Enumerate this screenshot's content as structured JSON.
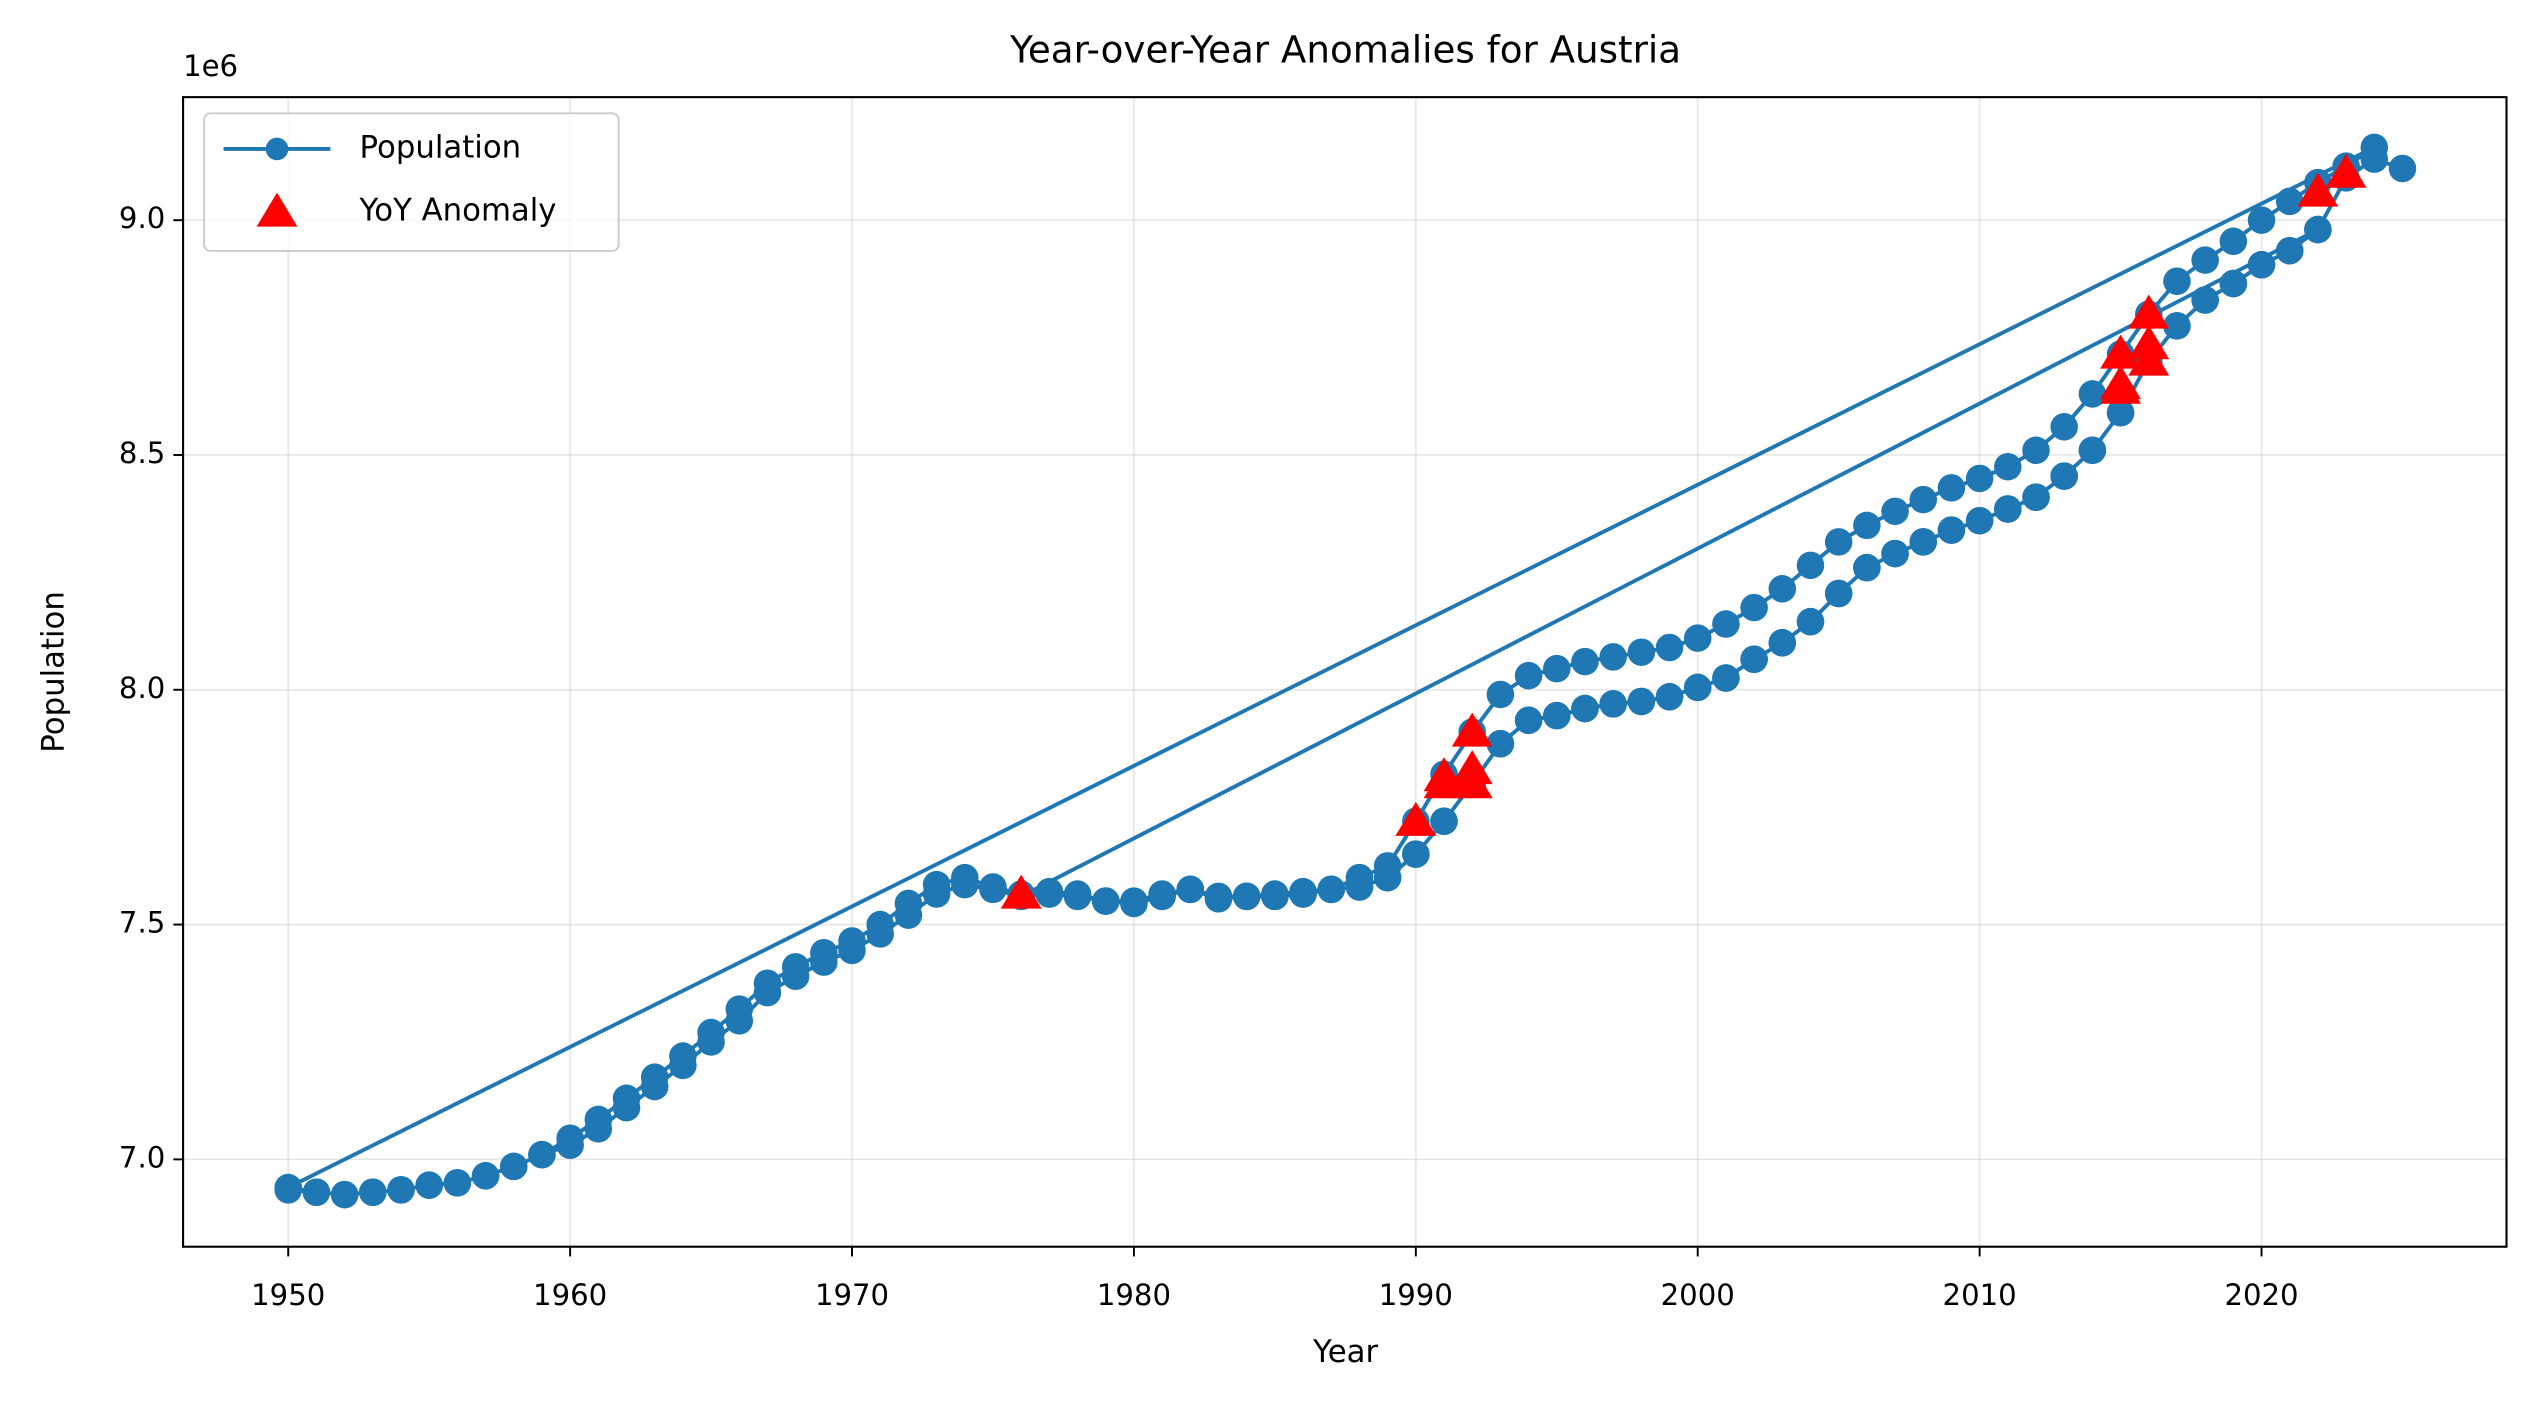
{
  "chart_data": {
    "type": "line",
    "title": "Year-over-Year Anomalies for Austria",
    "xlabel": "Year",
    "ylabel": "Population",
    "y_offset_label": "1e6",
    "xlim": [
      1946.27,
      2028.69
    ],
    "ylim": [
      6.814,
      9.262
    ],
    "xticks": [
      1950,
      1960,
      1970,
      1980,
      1990,
      2000,
      2010,
      2020
    ],
    "yticks": [
      {
        "value": 7,
        "label": "7.0"
      },
      {
        "value": 7.5,
        "label": "7.5"
      },
      {
        "value": 8,
        "label": "8.0"
      },
      {
        "value": 8.5,
        "label": "8.5"
      },
      {
        "value": 9,
        "label": "9.0"
      }
    ],
    "grid": true,
    "legend": "upper left",
    "series": [
      {
        "name": "Population",
        "type": "line",
        "color": "#1f77b4",
        "x": [
          1950,
          1951,
          1952,
          1953,
          1954,
          1955,
          1956,
          1957,
          1958,
          1959,
          1960,
          1961,
          1962,
          1963,
          1964,
          1965,
          1966,
          1967,
          1968,
          1969,
          1970,
          1971,
          1972,
          1973,
          1974,
          1975,
          1976,
          1977,
          1978,
          1979,
          1980,
          1981,
          1982,
          1983,
          1984,
          1985,
          1986,
          1987,
          1988,
          1989,
          1990,
          1991,
          1992,
          1993,
          1994,
          1995,
          1996,
          1997,
          1998,
          1999,
          2000,
          2001,
          2002,
          2003,
          2004,
          2005,
          2006,
          2007,
          2008,
          2009,
          2010,
          2011,
          2012,
          2013,
          2014,
          2015,
          2016,
          2017,
          2018,
          2019,
          2020,
          2021,
          2022,
          2023,
          2024,
          1950,
          1951,
          1952,
          1953,
          1954,
          1955,
          1956,
          1957,
          1958,
          1959,
          1960,
          1961,
          1962,
          1963,
          1964,
          1965,
          1966,
          1967,
          1968,
          1969,
          1970,
          1971,
          1972,
          1973,
          1974,
          1975,
          1976,
          1977,
          1978,
          1979,
          1980,
          1981,
          1982,
          1983,
          1984,
          1985,
          1986,
          1987,
          1988,
          1989,
          1990,
          1991,
          1992,
          1993,
          1994,
          1995,
          1996,
          1997,
          1998,
          1999,
          2000,
          2001,
          2002,
          2003,
          2004,
          2005,
          2006,
          2007,
          2008,
          2009,
          2010,
          2011,
          2012,
          2013,
          2014,
          2015,
          2016,
          2017,
          2018,
          2019,
          2020,
          2021,
          2022,
          1976,
          1977,
          1978,
          1979,
          1980,
          1981,
          1982,
          1983,
          1984,
          1985,
          1986,
          1987,
          1988,
          1989,
          1990,
          1991,
          1992,
          1993,
          1994,
          1995,
          1996,
          1997,
          1998,
          1999,
          2000,
          2001,
          2002,
          2003,
          2004,
          2005,
          2006,
          2007,
          2008,
          2009,
          2010,
          2011,
          2012,
          2013,
          2014,
          2015,
          2016,
          2017,
          2018,
          2019,
          2020,
          2021,
          2022,
          2023,
          2024,
          2025
        ],
        "values": [
          6.935,
          6.93,
          6.925,
          6.93,
          6.935,
          6.945,
          6.95,
          6.965,
          6.985,
          7.01,
          7.045,
          7.085,
          7.13,
          7.175,
          7.22,
          7.27,
          7.32,
          7.375,
          7.41,
          7.44,
          7.465,
          7.5,
          7.545,
          7.585,
          7.6,
          7.58,
          7.565,
          7.57,
          7.565,
          7.55,
          7.55,
          7.565,
          7.575,
          7.56,
          7.56,
          7.565,
          7.57,
          7.575,
          7.6,
          7.625,
          7.72,
          7.82,
          7.91,
          7.99,
          8.03,
          8.045,
          8.06,
          8.07,
          8.08,
          8.09,
          8.11,
          8.14,
          8.175,
          8.215,
          8.265,
          8.315,
          8.35,
          8.38,
          8.405,
          8.43,
          8.45,
          8.475,
          8.51,
          8.56,
          8.63,
          8.715,
          8.8,
          8.87,
          8.915,
          8.955,
          9.0,
          9.04,
          9.08,
          9.115,
          9.155,
          6.94,
          6.93,
          6.925,
          6.93,
          6.935,
          6.945,
          6.95,
          6.965,
          6.985,
          7.01,
          7.03,
          7.065,
          7.11,
          7.155,
          7.2,
          7.25,
          7.295,
          7.355,
          7.39,
          7.42,
          7.445,
          7.48,
          7.52,
          7.565,
          7.585,
          7.575,
          7.56,
          7.565,
          7.56,
          7.55,
          7.545,
          7.56,
          7.575,
          7.555,
          7.56,
          7.56,
          7.565,
          7.575,
          7.58,
          7.6,
          7.65,
          7.72,
          7.8,
          7.885,
          7.935,
          7.945,
          7.96,
          7.97,
          7.975,
          7.985,
          8.005,
          8.025,
          8.065,
          8.1,
          8.145,
          8.205,
          8.26,
          8.29,
          8.315,
          8.34,
          8.36,
          8.385,
          8.41,
          8.455,
          8.51,
          8.59,
          8.7,
          8.775,
          8.83,
          8.865,
          8.905,
          8.935,
          8.98,
          7.56,
          7.565,
          7.56,
          7.55,
          7.545,
          7.56,
          7.575,
          7.555,
          7.56,
          7.56,
          7.565,
          7.575,
          7.58,
          7.6,
          7.65,
          7.72,
          7.8,
          7.885,
          7.935,
          7.945,
          7.96,
          7.97,
          7.975,
          7.985,
          8.005,
          8.025,
          8.065,
          8.1,
          8.145,
          8.205,
          8.26,
          8.29,
          8.315,
          8.34,
          8.36,
          8.385,
          8.41,
          8.455,
          8.51,
          8.59,
          8.7,
          8.775,
          8.83,
          8.865,
          8.905,
          8.935,
          8.98,
          9.09,
          9.13,
          9.11
        ]
      },
      {
        "name": "YoY Anomaly",
        "type": "scatter",
        "color": "#ff0000",
        "x": [
          1976,
          1990,
          1991,
          1992,
          1992,
          1991,
          1992,
          2015,
          2015,
          2016,
          2016,
          2016,
          2022,
          2023,
          2015
        ],
        "values": [
          7.565,
          7.72,
          7.815,
          7.91,
          7.8,
          7.8,
          7.83,
          8.715,
          8.64,
          8.8,
          8.7,
          8.735,
          9.06,
          9.1,
          8.65
        ]
      }
    ]
  }
}
